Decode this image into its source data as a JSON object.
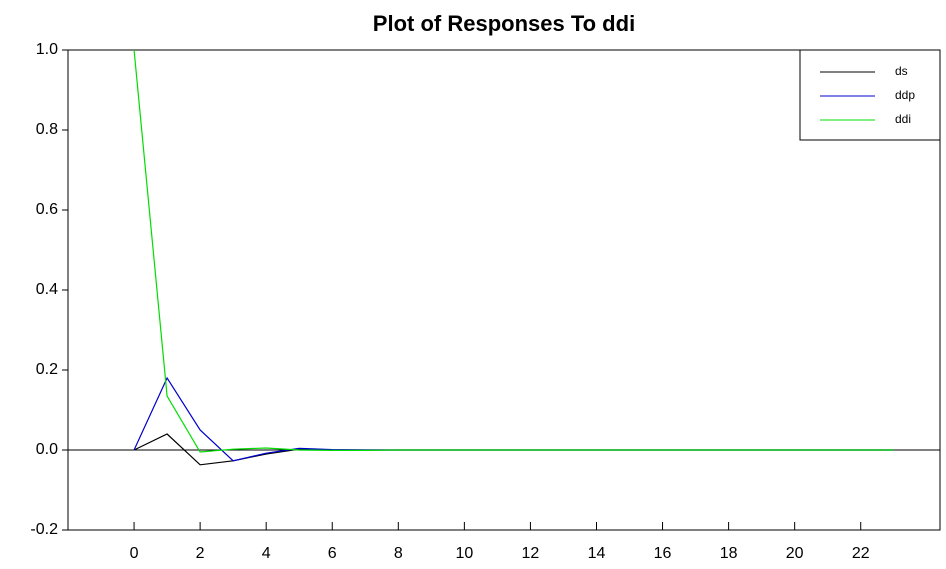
{
  "chart_data": {
    "type": "line",
    "title": "Plot of Responses To ddi",
    "x": [
      0,
      1,
      2,
      3,
      4,
      5,
      6,
      7,
      8,
      9,
      10,
      11,
      12,
      13,
      14,
      15,
      16,
      17,
      18,
      19,
      20,
      21,
      22,
      23
    ],
    "series": [
      {
        "name": "ds",
        "color": "#000000",
        "values": [
          0,
          0.04,
          -0.037,
          -0.027,
          -0.01,
          0.002,
          0,
          0,
          0,
          0,
          0,
          0,
          0,
          0,
          0,
          0,
          0,
          0,
          0,
          0,
          0,
          0,
          0,
          0
        ]
      },
      {
        "name": "ddp",
        "color": "#0000cc",
        "values": [
          0,
          0.18,
          0.05,
          -0.027,
          -0.008,
          0.004,
          0.001,
          0,
          0,
          0,
          0,
          0,
          0,
          0,
          0,
          0,
          0,
          0,
          0,
          0,
          0,
          0,
          0,
          0
        ]
      },
      {
        "name": "ddi",
        "color": "#00dd00",
        "values": [
          1.0,
          0.135,
          -0.005,
          0.002,
          0.005,
          0,
          -0.001,
          -0.001,
          0,
          0,
          0,
          0,
          0,
          0,
          0,
          0,
          0,
          0,
          0,
          0,
          0,
          0,
          0,
          0
        ]
      }
    ],
    "xlim": [
      -2,
      24.4
    ],
    "xticks": [
      0,
      2,
      4,
      6,
      8,
      10,
      12,
      14,
      16,
      18,
      20,
      22
    ],
    "ylim": [
      -0.2,
      1.0
    ],
    "yticks": [
      {
        "value": -0.2,
        "label": "-0.2"
      },
      {
        "value": 0,
        "label": "0.0"
      },
      {
        "value": 0.2,
        "label": "0.2"
      },
      {
        "value": 0.4,
        "label": "0.4"
      },
      {
        "value": 0.6,
        "label": "0.6"
      },
      {
        "value": 0.8,
        "label": "0.8"
      },
      {
        "value": 1.0,
        "label": "1.0"
      }
    ],
    "hline": 0,
    "legend": "upper right"
  }
}
